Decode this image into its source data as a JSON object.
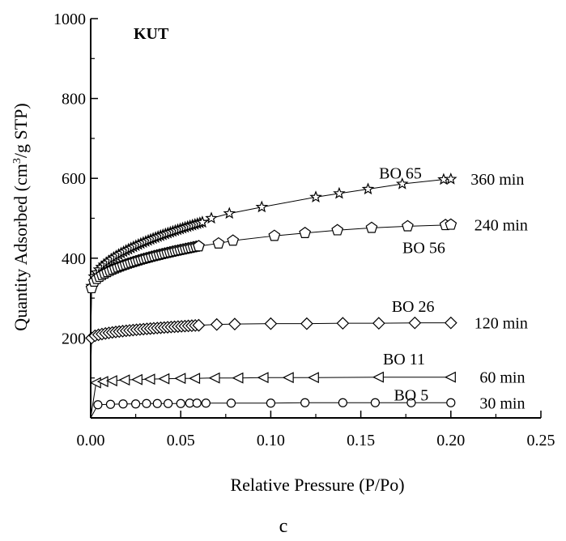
{
  "chart_data": {
    "type": "scatter",
    "title": "KUT",
    "caption": "c",
    "xlabel": "Relative Pressure (P/Po)",
    "ylabel_main": "Quantity Adsorbed (cm",
    "ylabel_sup": "3",
    "ylabel_tail": "/g STP)",
    "xlim": [
      0,
      0.25
    ],
    "ylim": [
      0,
      1000
    ],
    "xticks": [
      "0.00",
      "0.05",
      "0.10",
      "0.15",
      "0.20",
      "0.25"
    ],
    "yticks": [
      "200",
      "400",
      "600",
      "800",
      "1000"
    ],
    "grid": false,
    "series": [
      {
        "name": "BO 65",
        "time": "360 min",
        "marker": "star",
        "dense": {
          "x0": 0.0005,
          "x1": 0.062,
          "y0": 330,
          "y1": 490,
          "n": 46
        },
        "x": [
          0.062,
          0.067,
          0.077,
          0.095,
          0.125,
          0.138,
          0.154,
          0.173,
          0.196,
          0.2
        ],
        "y": [
          490,
          500,
          512,
          528,
          553,
          562,
          573,
          586,
          597,
          598
        ]
      },
      {
        "name": "BO 56",
        "time": "240 min",
        "marker": "pentagon",
        "dense": {
          "x0": 0.0005,
          "x1": 0.06,
          "y0": 325,
          "y1": 430,
          "n": 42
        },
        "x": [
          0.06,
          0.071,
          0.079,
          0.102,
          0.119,
          0.137,
          0.156,
          0.176,
          0.197,
          0.2
        ],
        "y": [
          430,
          437,
          444,
          456,
          463,
          470,
          476,
          480,
          483,
          484
        ]
      },
      {
        "name": "BO 26",
        "time": "120 min",
        "marker": "diamond",
        "dense": {
          "x0": 0.0005,
          "x1": 0.06,
          "y0": 200,
          "y1": 232,
          "n": 32
        },
        "x": [
          0.06,
          0.07,
          0.08,
          0.1,
          0.12,
          0.14,
          0.16,
          0.18,
          0.2
        ],
        "y": [
          232,
          234,
          235,
          236,
          236,
          237,
          237,
          238,
          238
        ]
      },
      {
        "name": "BO 11",
        "time": "60 min",
        "marker": "triangle-left",
        "dense": null,
        "x": [
          0.003,
          0.007,
          0.012,
          0.019,
          0.026,
          0.033,
          0.041,
          0.05,
          0.058,
          0.069,
          0.082,
          0.096,
          0.11,
          0.124,
          0.16,
          0.2
        ],
        "y": [
          88,
          91,
          93,
          95,
          96,
          97,
          98,
          99,
          99,
          100,
          100,
          101,
          101,
          101,
          102,
          102
        ]
      },
      {
        "name": "BO 5",
        "time": "30 min",
        "marker": "circle",
        "dense": null,
        "x": [
          0.004,
          0.011,
          0.018,
          0.025,
          0.031,
          0.037,
          0.043,
          0.05,
          0.055,
          0.059,
          0.064,
          0.078,
          0.1,
          0.119,
          0.14,
          0.158,
          0.178,
          0.2
        ],
        "y": [
          33,
          34,
          35,
          35,
          36,
          36,
          36,
          36,
          37,
          37,
          37,
          37,
          37,
          38,
          38,
          38,
          38,
          38
        ]
      }
    ]
  }
}
